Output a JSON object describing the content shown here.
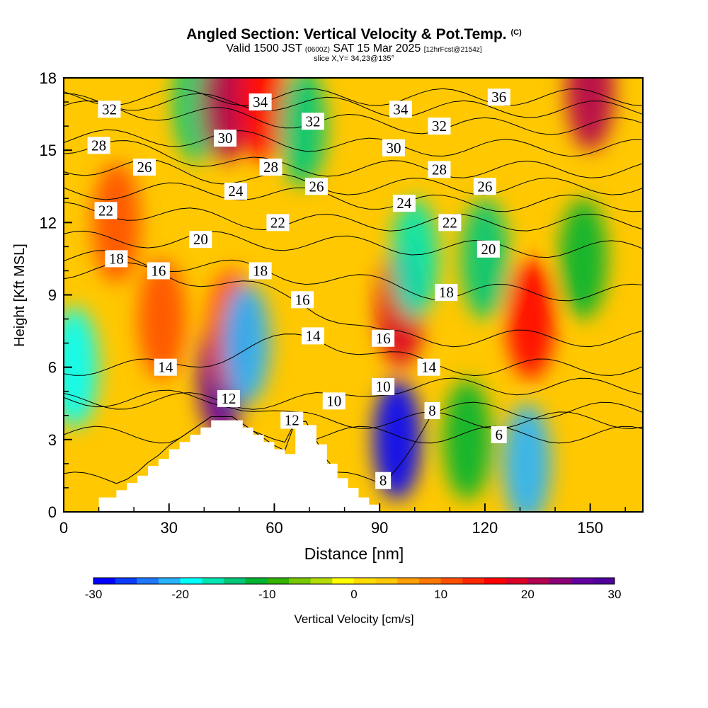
{
  "header": {
    "title_main": "Angled Section: Vertical Velocity & Pot.Temp.",
    "title_suffix": "(C)",
    "valid_pre": "Valid 1500 JST",
    "valid_z": "(0600Z)",
    "valid_date": "SAT 15 Mar 2025",
    "valid_fcst": "[12hrFcst@2154z]",
    "slice": "slice X,Y= 34,23@135°"
  },
  "axes": {
    "xlabel": "Distance [nm]",
    "ylabel": "Height [Kft MSL]",
    "xticks": [
      "0",
      "30",
      "60",
      "90",
      "120",
      "150"
    ],
    "yticks": [
      "0",
      "3",
      "6",
      "9",
      "12",
      "15",
      "18"
    ]
  },
  "colorbar": {
    "label": "Vertical Velocity [cm/s]",
    "ticks": [
      "-30",
      "-20",
      "-10",
      "0",
      "10",
      "20",
      "30"
    ],
    "colors": [
      "#0000ff",
      "#0a3cff",
      "#1e78ff",
      "#28b4ff",
      "#00ffff",
      "#00e6b4",
      "#00c878",
      "#00b432",
      "#32b400",
      "#78c800",
      "#b4dc00",
      "#ffff00",
      "#ffdc00",
      "#ffc800",
      "#ffa000",
      "#ff7800",
      "#ff5000",
      "#ff2800",
      "#ff0000",
      "#dc0028",
      "#b40050",
      "#8c0078",
      "#6400a0",
      "#50009c"
    ]
  },
  "chart_data": {
    "type": "heatmap",
    "title": "Angled Section: Vertical Velocity & Pot.Temp. (C)",
    "xlabel": "Distance [nm]",
    "ylabel": "Height [Kft MSL]",
    "xlim": [
      0,
      165
    ],
    "ylim": [
      0,
      18
    ],
    "color_scale": {
      "variable": "Vertical Velocity [cm/s]",
      "min": -30,
      "max": 30
    },
    "vertical_velocity_features": [
      {
        "x": 3,
        "y": 6,
        "value": -18
      },
      {
        "x": 45,
        "y": 5.5,
        "value": 25
      },
      {
        "x": 48,
        "y": 7.5,
        "value": 14
      },
      {
        "x": 52,
        "y": 7,
        "value": -22
      },
      {
        "x": 38,
        "y": 17,
        "value": -15
      },
      {
        "x": 46,
        "y": 17,
        "value": 20
      },
      {
        "x": 57,
        "y": 17,
        "value": 16
      },
      {
        "x": 68,
        "y": 16,
        "value": -14
      },
      {
        "x": 95,
        "y": 3,
        "value": -28
      },
      {
        "x": 96,
        "y": 8.5,
        "value": 18
      },
      {
        "x": 100,
        "y": 10.5,
        "value": -16
      },
      {
        "x": 115,
        "y": 3,
        "value": -12
      },
      {
        "x": 120,
        "y": 10.5,
        "value": -14
      },
      {
        "x": 132,
        "y": 2,
        "value": -22
      },
      {
        "x": 133,
        "y": 8,
        "value": 17
      },
      {
        "x": 148,
        "y": 10.5,
        "value": -12
      },
      {
        "x": 150,
        "y": 17.5,
        "value": 22
      },
      {
        "x": 15,
        "y": 12,
        "value": 10
      },
      {
        "x": 28,
        "y": 8,
        "value": 12
      }
    ],
    "theta_contour_labels": [
      {
        "value": "36",
        "x": 124,
        "y": 17.2
      },
      {
        "value": "34",
        "x": 56,
        "y": 17.0
      },
      {
        "value": "34",
        "x": 96,
        "y": 16.7
      },
      {
        "value": "32",
        "x": 13,
        "y": 16.7
      },
      {
        "value": "32",
        "x": 71,
        "y": 16.2
      },
      {
        "value": "32",
        "x": 107,
        "y": 16.0
      },
      {
        "value": "30",
        "x": 46,
        "y": 15.5
      },
      {
        "value": "30",
        "x": 94,
        "y": 15.1
      },
      {
        "value": "28",
        "x": 10,
        "y": 15.2
      },
      {
        "value": "28",
        "x": 59,
        "y": 14.3
      },
      {
        "value": "28",
        "x": 107,
        "y": 14.2
      },
      {
        "value": "26",
        "x": 23,
        "y": 14.3
      },
      {
        "value": "26",
        "x": 72,
        "y": 13.5
      },
      {
        "value": "26",
        "x": 120,
        "y": 13.5
      },
      {
        "value": "24",
        "x": 49,
        "y": 13.3
      },
      {
        "value": "24",
        "x": 97,
        "y": 12.8
      },
      {
        "value": "22",
        "x": 12,
        "y": 12.5
      },
      {
        "value": "22",
        "x": 61,
        "y": 12.0
      },
      {
        "value": "22",
        "x": 110,
        "y": 12.0
      },
      {
        "value": "20",
        "x": 39,
        "y": 11.3
      },
      {
        "value": "20",
        "x": 121,
        "y": 10.9
      },
      {
        "value": "18",
        "x": 15,
        "y": 10.5
      },
      {
        "value": "18",
        "x": 56,
        "y": 10.0
      },
      {
        "value": "18",
        "x": 109,
        "y": 9.1
      },
      {
        "value": "16",
        "x": 27,
        "y": 10.0
      },
      {
        "value": "16",
        "x": 68,
        "y": 8.8
      },
      {
        "value": "16",
        "x": 91,
        "y": 7.2
      },
      {
        "value": "14",
        "x": 29,
        "y": 6.0
      },
      {
        "value": "14",
        "x": 71,
        "y": 7.3
      },
      {
        "value": "14",
        "x": 104,
        "y": 6.0
      },
      {
        "value": "12",
        "x": 47,
        "y": 4.7
      },
      {
        "value": "12",
        "x": 65,
        "y": 3.8
      },
      {
        "value": "10",
        "x": 77,
        "y": 4.6
      },
      {
        "value": "10",
        "x": 91,
        "y": 5.2
      },
      {
        "value": "8",
        "x": 105,
        "y": 4.2
      },
      {
        "value": "8",
        "x": 91,
        "y": 1.3
      },
      {
        "value": "6",
        "x": 124,
        "y": 3.2
      }
    ],
    "terrain_profile_x": [
      0,
      10,
      12,
      15,
      18,
      21,
      24,
      27,
      30,
      33,
      36,
      39,
      42,
      45,
      48,
      51,
      54,
      57,
      60,
      63,
      66,
      69,
      72,
      75,
      78,
      81,
      84,
      87,
      90,
      165
    ],
    "terrain_profile_y": [
      0,
      0.6,
      0.6,
      0.9,
      1.2,
      1.5,
      1.9,
      2.2,
      2.6,
      2.9,
      3.2,
      3.5,
      3.8,
      3.8,
      3.8,
      3.5,
      3.2,
      2.9,
      2.6,
      2.4,
      3.6,
      3.6,
      2.8,
      2.0,
      1.4,
      1.0,
      0.6,
      0.3,
      0,
      0
    ]
  }
}
